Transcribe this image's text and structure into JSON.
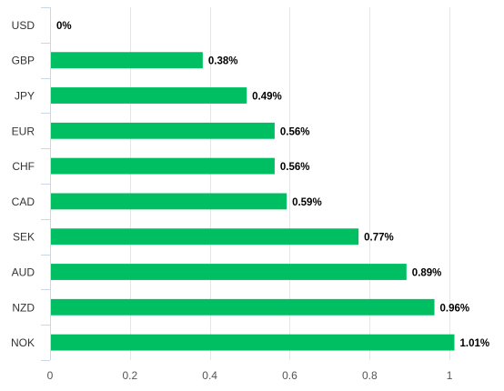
{
  "chart_data": {
    "type": "bar",
    "orientation": "horizontal",
    "categories": [
      "USD",
      "GBP",
      "JPY",
      "EUR",
      "CHF",
      "CAD",
      "SEK",
      "AUD",
      "NZD",
      "NOK"
    ],
    "values": [
      0,
      0.38,
      0.49,
      0.56,
      0.56,
      0.59,
      0.77,
      0.89,
      0.96,
      1.01
    ],
    "data_labels": [
      "0%",
      "0.38%",
      "0.49%",
      "0.56%",
      "0.56%",
      "0.59%",
      "0.77%",
      "0.89%",
      "0.96%",
      "1.01%"
    ],
    "xticks": [
      0,
      0.2,
      0.4,
      0.6,
      0.8,
      1
    ],
    "xtick_labels": [
      "0",
      "0.2",
      "0.4",
      "0.6",
      "0.8",
      "1"
    ],
    "xlim": [
      0,
      1.01
    ],
    "grid": true,
    "legend": "none",
    "bar_color": "#00bf63",
    "title": "",
    "xlabel": "",
    "ylabel": ""
  }
}
